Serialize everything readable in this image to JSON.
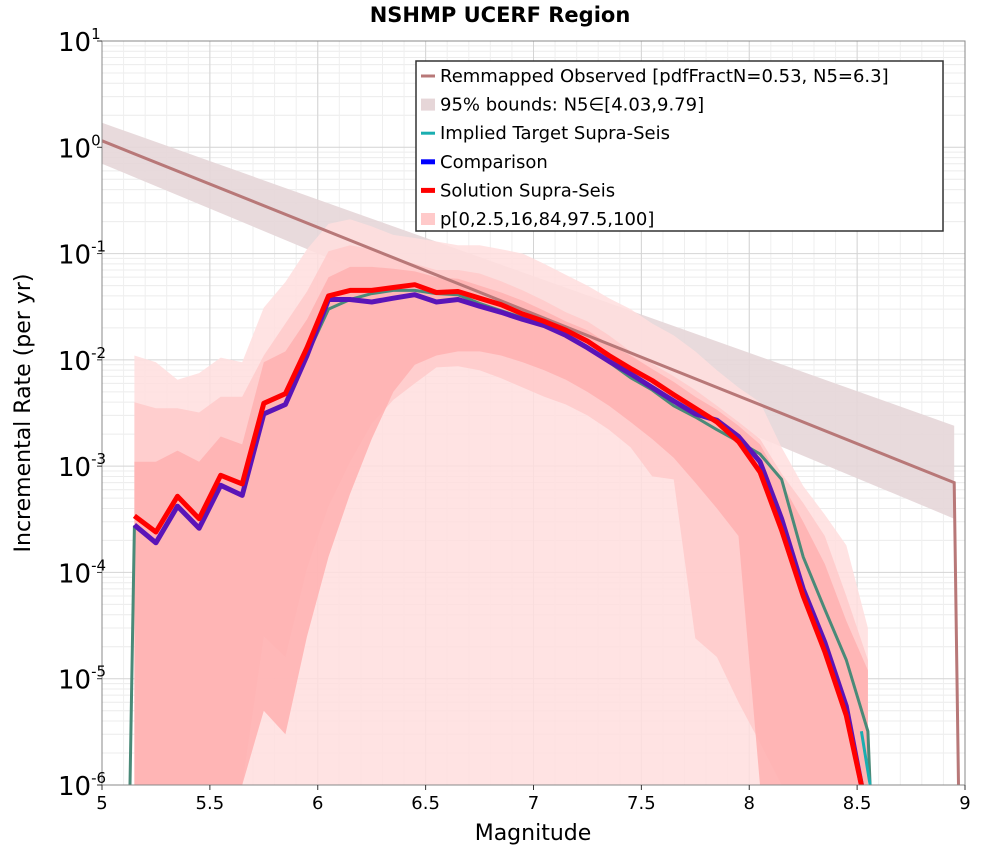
{
  "chart_data": {
    "type": "line",
    "title": "NSHMP UCERF Region",
    "xlabel": "Magnitude",
    "ylabel": "Incremental Rate (per yr)",
    "xlim": [
      5,
      9
    ],
    "ylim": [
      1e-06,
      10
    ],
    "yscale": "log",
    "grid": true,
    "legend_position": "top-right",
    "x_ticks": [
      "5",
      "5.5",
      "6",
      "6.5",
      "7",
      "7.5",
      "8",
      "8.5",
      "9"
    ],
    "y_ticks": [
      {
        "base": "10",
        "exp": "-6"
      },
      {
        "base": "10",
        "exp": "-5"
      },
      {
        "base": "10",
        "exp": "-4"
      },
      {
        "base": "10",
        "exp": "-3"
      },
      {
        "base": "10",
        "exp": "-2"
      },
      {
        "base": "10",
        "exp": "-1"
      },
      {
        "base": "10",
        "exp": "0"
      },
      {
        "base": "10",
        "exp": "1"
      }
    ],
    "legend": [
      "Remmapped Observed [pdfFractN=0.53, N5=6.3]",
      "95% bounds: N5∈[4.03,9.79]",
      "Implied Target Supra-Seis",
      "Comparison",
      "Solution Supra-Seis",
      "p[0,2.5,16,84,97.5,100]"
    ],
    "colors": {
      "observed": "#b87878",
      "observed_band": "#e6d6d8",
      "target": "#1aaeb0",
      "target_visible": "#4a8a78",
      "comparison": "#0000ff",
      "comparison_visible": "#5a14b8",
      "solution": "#ff0000",
      "band_outer": "#ffdede",
      "band_mid": "#ffcaca",
      "band_inner": "#ffb0b0"
    },
    "series": [
      {
        "name": "Remmapped Observed [pdfFractN=0.53, N5=6.3]",
        "x": [
          5.0,
          8.95,
          8.97
        ],
        "y": [
          1.15,
          0.0007,
          1e-06
        ]
      },
      {
        "name": "95% bounds: N5∈[4.03,9.79]",
        "x": [
          5.0,
          8.95
        ],
        "y_low": [
          0.7,
          0.00032
        ],
        "y_high": [
          1.7,
          0.0024
        ]
      },
      {
        "name": "Implied Target Supra-Seis",
        "x": [
          5.13,
          5.15,
          5.25,
          5.35,
          5.45,
          5.55,
          5.65,
          5.75,
          5.85,
          5.95,
          6.05,
          6.15,
          6.25,
          6.35,
          6.45,
          6.55,
          6.65,
          6.75,
          6.85,
          6.95,
          7.05,
          7.15,
          7.25,
          7.35,
          7.45,
          7.55,
          7.65,
          7.75,
          7.85,
          7.95,
          8.05,
          8.15,
          8.25,
          8.35,
          8.45,
          8.55,
          8.56
        ],
        "y": [
          1e-06,
          0.00027,
          0.00019,
          0.00042,
          0.00026,
          0.00066,
          0.00053,
          0.0031,
          0.0038,
          0.011,
          0.03,
          0.037,
          0.042,
          0.045,
          0.045,
          0.042,
          0.041,
          0.034,
          0.029,
          0.025,
          0.021,
          0.017,
          0.013,
          0.0095,
          0.0068,
          0.0052,
          0.0037,
          0.0029,
          0.0022,
          0.0017,
          0.0013,
          0.00075,
          0.00014,
          4.5e-05,
          1.5e-05,
          3.2e-06,
          1e-06
        ]
      },
      {
        "name": "Comparison",
        "x": [
          5.15,
          5.25,
          5.35,
          5.45,
          5.55,
          5.65,
          5.75,
          5.85,
          5.95,
          6.05,
          6.15,
          6.25,
          6.35,
          6.45,
          6.55,
          6.65,
          6.75,
          6.85,
          6.95,
          7.05,
          7.15,
          7.25,
          7.35,
          7.45,
          7.55,
          7.65,
          7.75,
          7.85,
          7.95,
          8.05,
          8.15,
          8.25,
          8.35,
          8.45,
          8.52
        ],
        "y": [
          0.00028,
          0.00019,
          0.00042,
          0.00026,
          0.00066,
          0.00053,
          0.0031,
          0.0038,
          0.011,
          0.037,
          0.037,
          0.035,
          0.038,
          0.041,
          0.035,
          0.037,
          0.032,
          0.028,
          0.024,
          0.021,
          0.017,
          0.013,
          0.0097,
          0.0074,
          0.0055,
          0.0041,
          0.0031,
          0.0027,
          0.0019,
          0.0011,
          0.00032,
          7e-05,
          2.2e-05,
          5.5e-06,
          1e-06
        ]
      },
      {
        "name": "Solution Supra-Seis",
        "x": [
          5.15,
          5.25,
          5.35,
          5.45,
          5.55,
          5.65,
          5.75,
          5.85,
          5.95,
          6.05,
          6.15,
          6.25,
          6.35,
          6.45,
          6.55,
          6.65,
          6.75,
          6.85,
          6.95,
          7.05,
          7.15,
          7.25,
          7.35,
          7.45,
          7.55,
          7.65,
          7.75,
          7.85,
          7.95,
          8.05,
          8.15,
          8.25,
          8.35,
          8.45,
          8.52
        ],
        "y": [
          0.00034,
          0.00024,
          0.00052,
          0.00032,
          0.00082,
          0.00068,
          0.0039,
          0.0048,
          0.013,
          0.04,
          0.045,
          0.045,
          0.048,
          0.051,
          0.043,
          0.044,
          0.038,
          0.033,
          0.027,
          0.023,
          0.019,
          0.015,
          0.011,
          0.0083,
          0.0064,
          0.0047,
          0.0035,
          0.0026,
          0.0017,
          0.00088,
          0.00025,
          6e-05,
          1.8e-05,
          4.5e-06,
          1e-06
        ]
      },
      {
        "name": "p[0,2.5,16,84,97.5,100]",
        "x": [
          5.15,
          5.25,
          5.35,
          5.45,
          5.55,
          5.65,
          5.75,
          5.85,
          5.95,
          6.05,
          6.15,
          6.25,
          6.35,
          6.45,
          6.55,
          6.65,
          6.75,
          6.85,
          6.95,
          7.05,
          7.15,
          7.25,
          7.35,
          7.45,
          7.55,
          7.65,
          7.75,
          7.85,
          7.95,
          8.05,
          8.15,
          8.25,
          8.35,
          8.45,
          8.55
        ],
        "bands": [
          {
            "lo": [
              1e-06,
              1e-06,
              1e-06,
              1e-06,
              1e-06,
              1e-06,
              1e-06,
              1e-06,
              1e-06,
              1e-06,
              1e-06,
              1e-06,
              1e-06,
              1e-06,
              1e-06,
              1e-06,
              1e-06,
              1e-06,
              1e-06,
              1e-06,
              1e-06,
              1e-06,
              1e-06,
              1e-06,
              1e-06,
              1e-06,
              1e-06,
              1e-06,
              1e-06,
              1e-06,
              1e-06,
              1e-06,
              1e-06,
              1e-06,
              1e-06
            ],
            "hi": [
              0.011,
              0.0095,
              0.0065,
              0.0075,
              0.0105,
              0.0095,
              0.031,
              0.054,
              0.11,
              0.19,
              0.21,
              0.18,
              0.15,
              0.14,
              0.13,
              0.12,
              0.12,
              0.11,
              0.1,
              0.08,
              0.063,
              0.05,
              0.038,
              0.03,
              0.022,
              0.017,
              0.012,
              0.008,
              0.0055,
              0.004,
              0.0015,
              0.00065,
              0.00035,
              0.00018,
              3e-05
            ]
          },
          {
            "lo": [
              1e-06,
              1e-06,
              1e-06,
              1e-06,
              1e-06,
              1e-06,
              2.5e-05,
              1.6e-05,
              0.00011,
              0.00042,
              0.0011,
              0.0025,
              0.0042,
              0.006,
              0.0085,
              0.0087,
              0.008,
              0.0067,
              0.0055,
              0.0045,
              0.0038,
              0.003,
              0.0022,
              0.0015,
              0.0008,
              0.00075,
              2.4e-05,
              1.6e-05,
              6e-06,
              2.5e-06,
              1e-06,
              1e-06,
              1e-06,
              1e-06,
              1e-06
            ],
            "hi": [
              0.004,
              0.0035,
              0.0035,
              0.0032,
              0.0045,
              0.0045,
              0.011,
              0.022,
              0.044,
              0.105,
              0.12,
              0.11,
              0.09,
              0.08,
              0.07,
              0.07,
              0.065,
              0.055,
              0.045,
              0.036,
              0.028,
              0.023,
              0.017,
              0.012,
              0.0092,
              0.007,
              0.0052,
              0.0037,
              0.0026,
              0.0018,
              0.00085,
              0.00045,
              0.00022,
              6e-05,
              1.5e-05
            ]
          },
          {
            "lo": [
              1e-06,
              1e-06,
              1e-06,
              1e-06,
              1e-06,
              1e-06,
              5e-06,
              3e-06,
              2.5e-05,
              0.00014,
              0.00055,
              0.0018,
              0.005,
              0.009,
              0.011,
              0.012,
              0.012,
              0.011,
              0.0095,
              0.008,
              0.0065,
              0.005,
              0.0037,
              0.0026,
              0.0018,
              0.0012,
              0.0007,
              0.0004,
              0.00022,
              1e-06,
              1e-06,
              1e-06,
              1e-06,
              1e-06,
              1e-06
            ],
            "hi": [
              0.0011,
              0.0011,
              0.0014,
              0.0011,
              0.0019,
              0.0016,
              0.0095,
              0.012,
              0.024,
              0.06,
              0.075,
              0.075,
              0.072,
              0.068,
              0.06,
              0.058,
              0.05,
              0.043,
              0.036,
              0.029,
              0.023,
              0.019,
              0.014,
              0.011,
              0.0082,
              0.0062,
              0.0045,
              0.0034,
              0.0024,
              0.0016,
              0.0007,
              0.0003,
              0.00012,
              3.5e-05,
              1.2e-05
            ]
          }
        ]
      }
    ]
  }
}
